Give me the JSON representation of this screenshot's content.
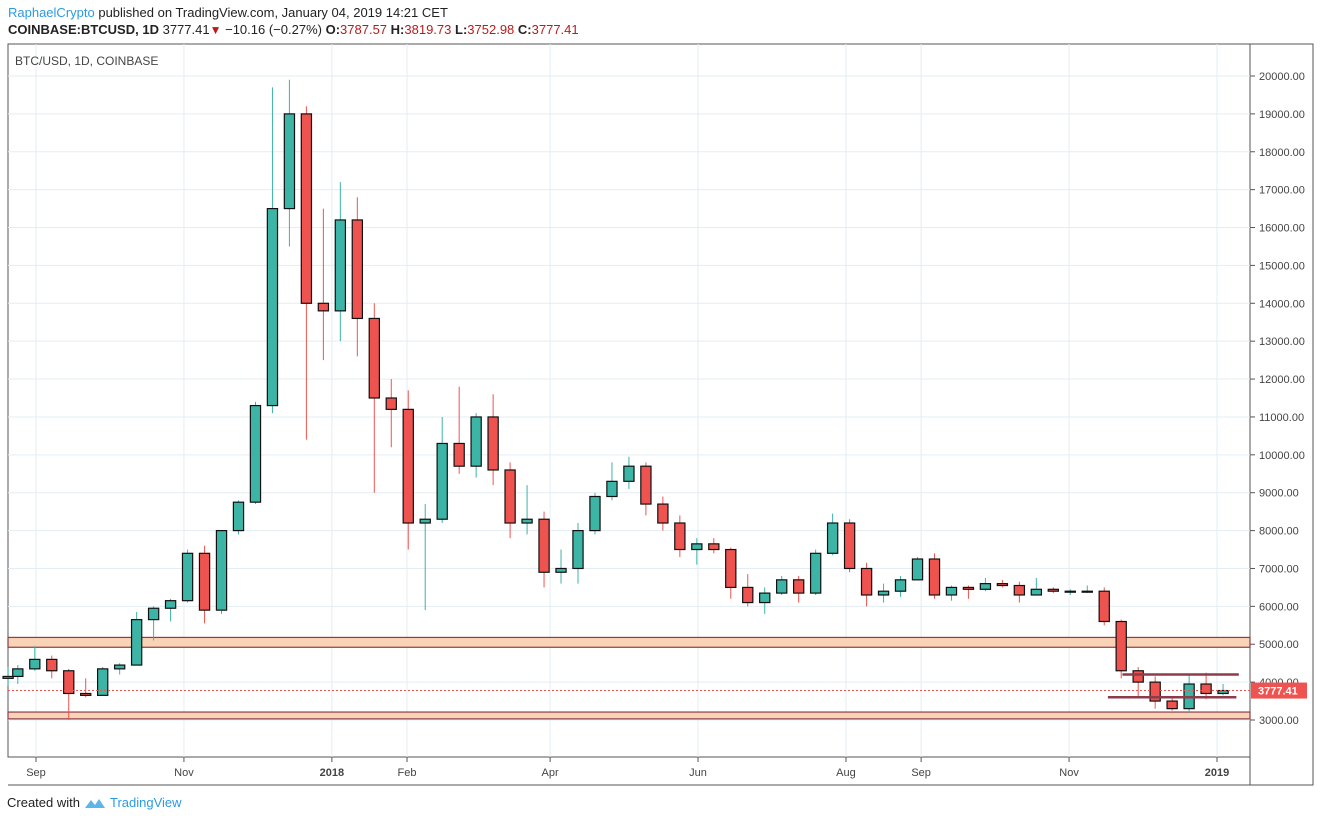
{
  "header": {
    "author": "RaphaelCrypto",
    "published": "published on TradingView.com, January 04, 2019 14:21 CET",
    "symbol": "COINBASE:BTCUSD, 1D",
    "last": "3777.41",
    "change": "−10.16 (−0.27%)",
    "o_label": "O:",
    "o": "3787.57",
    "h_label": "H:",
    "h": "3819.73",
    "l_label": "L:",
    "l": "3752.98",
    "c_label": "C:",
    "c": "3777.41"
  },
  "footer": {
    "created_with": "Created with",
    "brand": "TradingView",
    "logo_icon": "tradingview-logo-icon"
  },
  "colors": {
    "up": "#3cb4a6",
    "down": "#ef5350",
    "zone": "#f9d3b6",
    "zone_border": "#8e3b4a",
    "price_line": "#ef5350",
    "grid": "#e3edf3"
  },
  "chart_data": {
    "type": "candlestick",
    "title": "BTC/USD, 1D, COINBASE",
    "ylim": [
      2000,
      20800
    ],
    "yticks": [
      3000,
      4000,
      5000,
      6000,
      7000,
      8000,
      9000,
      10000,
      11000,
      12000,
      13000,
      14000,
      15000,
      16000,
      17000,
      18000,
      19000,
      20000
    ],
    "ytick_labels": [
      "3000.00",
      "4000.00",
      "5000.00",
      "6000.00",
      "7000.00",
      "8000.00",
      "9000.00",
      "10000.00",
      "11000.00",
      "12000.00",
      "13000.00",
      "14000.00",
      "15000.00",
      "16000.00",
      "17000.00",
      "18000.00",
      "19000.00",
      "20000.00"
    ],
    "xlim": [
      "2017-08-17",
      "2019-01-18"
    ],
    "xticks": [
      {
        "date": "2017-09-01",
        "label": "Sep"
      },
      {
        "date": "2017-11-01",
        "label": "Nov"
      },
      {
        "date": "2018-01-01",
        "label": "2018"
      },
      {
        "date": "2018-02-01",
        "label": "Feb"
      },
      {
        "date": "2018-04-01",
        "label": "Apr"
      },
      {
        "date": "2018-06-01",
        "label": "Jun"
      },
      {
        "date": "2018-08-01",
        "label": "Aug"
      },
      {
        "date": "2018-09-01",
        "label": "Sep"
      },
      {
        "date": "2018-11-01",
        "label": "Nov"
      },
      {
        "date": "2019-01-01",
        "label": "2019"
      }
    ],
    "grid": true,
    "last_price": 3777.41,
    "last_price_label": "3777.41",
    "zones": [
      {
        "from": 4920,
        "to": 5180
      },
      {
        "from": 3030,
        "to": 3210
      }
    ],
    "lines": [
      {
        "price": 4200,
        "from": "2018-11-23",
        "to": "2019-01-10"
      },
      {
        "price": 3600,
        "from": "2018-11-17",
        "to": "2019-01-09"
      }
    ],
    "columns": [
      "date",
      "open",
      "high",
      "low",
      "close"
    ],
    "candles": [
      [
        "2017-08-17",
        4100,
        4400,
        3900,
        4150
      ],
      [
        "2017-08-21",
        4150,
        4450,
        3950,
        4350
      ],
      [
        "2017-08-28",
        4350,
        4950,
        4300,
        4600
      ],
      [
        "2017-09-04",
        4600,
        4700,
        4100,
        4300
      ],
      [
        "2017-09-11",
        4300,
        4350,
        3000,
        3700
      ],
      [
        "2017-09-18",
        3700,
        4100,
        3600,
        3650
      ],
      [
        "2017-09-25",
        3650,
        4400,
        3650,
        4350
      ],
      [
        "2017-10-02",
        4350,
        4500,
        4200,
        4450
      ],
      [
        "2017-10-09",
        4450,
        5850,
        4450,
        5650
      ],
      [
        "2017-10-16",
        5650,
        6000,
        5100,
        5950
      ],
      [
        "2017-10-23",
        5950,
        6200,
        5600,
        6150
      ],
      [
        "2017-10-30",
        6150,
        7500,
        6100,
        7400
      ],
      [
        "2017-11-06",
        7400,
        7600,
        5550,
        5900
      ],
      [
        "2017-11-13",
        5900,
        8000,
        5800,
        8000
      ],
      [
        "2017-11-20",
        8000,
        8800,
        7900,
        8750
      ],
      [
        "2017-11-27",
        8750,
        11400,
        8700,
        11300
      ],
      [
        "2017-12-04",
        11300,
        19700,
        11100,
        16500
      ],
      [
        "2017-12-11",
        16500,
        19900,
        15500,
        19000
      ],
      [
        "2017-12-18",
        19000,
        19200,
        10400,
        14000
      ],
      [
        "2017-12-25",
        14000,
        16500,
        12500,
        13800
      ],
      [
        "2018-01-01",
        13800,
        17200,
        13000,
        16200
      ],
      [
        "2018-01-08",
        16200,
        16800,
        12600,
        13600
      ],
      [
        "2018-01-15",
        13600,
        14000,
        9000,
        11500
      ],
      [
        "2018-01-22",
        11500,
        12000,
        10200,
        11200
      ],
      [
        "2018-01-29",
        11200,
        11700,
        7500,
        8200
      ],
      [
        "2018-02-05",
        8200,
        8700,
        5900,
        8300
      ],
      [
        "2018-02-12",
        8300,
        11000,
        8200,
        10300
      ],
      [
        "2018-02-19",
        10300,
        11800,
        9500,
        9700
      ],
      [
        "2018-02-26",
        9700,
        11100,
        9400,
        11000
      ],
      [
        "2018-03-05",
        11000,
        11600,
        9200,
        9600
      ],
      [
        "2018-03-12",
        9600,
        9800,
        7800,
        8200
      ],
      [
        "2018-03-19",
        8200,
        9200,
        7900,
        8300
      ],
      [
        "2018-03-26",
        8300,
        8500,
        6500,
        6900
      ],
      [
        "2018-04-02",
        6900,
        7500,
        6600,
        7000
      ],
      [
        "2018-04-09",
        7000,
        8200,
        6600,
        8000
      ],
      [
        "2018-04-16",
        8000,
        9000,
        7900,
        8900
      ],
      [
        "2018-04-23",
        8900,
        9800,
        8800,
        9300
      ],
      [
        "2018-04-30",
        9300,
        9950,
        9100,
        9700
      ],
      [
        "2018-05-07",
        9700,
        9800,
        8400,
        8700
      ],
      [
        "2018-05-14",
        8700,
        8900,
        8000,
        8200
      ],
      [
        "2018-05-21",
        8200,
        8400,
        7300,
        7500
      ],
      [
        "2018-05-28",
        7500,
        7800,
        7100,
        7650
      ],
      [
        "2018-06-04",
        7650,
        7800,
        7400,
        7500
      ],
      [
        "2018-06-11",
        7500,
        7550,
        6200,
        6500
      ],
      [
        "2018-06-18",
        6500,
        6850,
        6000,
        6100
      ],
      [
        "2018-06-25",
        6100,
        6500,
        5800,
        6350
      ],
      [
        "2018-07-02",
        6350,
        6800,
        6300,
        6700
      ],
      [
        "2018-07-09",
        6700,
        6800,
        6100,
        6350
      ],
      [
        "2018-07-16",
        6350,
        7500,
        6300,
        7400
      ],
      [
        "2018-07-23",
        7400,
        8450,
        7350,
        8200
      ],
      [
        "2018-07-30",
        8200,
        8300,
        6900,
        7000
      ],
      [
        "2018-08-06",
        7000,
        7150,
        6000,
        6300
      ],
      [
        "2018-08-13",
        6300,
        6600,
        6100,
        6400
      ],
      [
        "2018-08-20",
        6400,
        6800,
        6250,
        6700
      ],
      [
        "2018-08-27",
        6700,
        7300,
        6700,
        7250
      ],
      [
        "2018-09-03",
        7250,
        7400,
        6200,
        6300
      ],
      [
        "2018-09-10",
        6300,
        6550,
        6150,
        6500
      ],
      [
        "2018-09-17",
        6500,
        6550,
        6200,
        6450
      ],
      [
        "2018-09-24",
        6450,
        6750,
        6400,
        6600
      ],
      [
        "2018-10-01",
        6600,
        6700,
        6500,
        6550
      ],
      [
        "2018-10-08",
        6550,
        6650,
        6100,
        6300
      ],
      [
        "2018-10-15",
        6300,
        6750,
        6300,
        6450
      ],
      [
        "2018-10-22",
        6450,
        6500,
        6350,
        6400
      ],
      [
        "2018-10-29",
        6400,
        6450,
        6300,
        6400
      ],
      [
        "2018-11-05",
        6400,
        6550,
        6350,
        6400
      ],
      [
        "2018-11-12",
        6400,
        6500,
        5500,
        5600
      ],
      [
        "2018-11-19",
        5600,
        5650,
        4100,
        4300
      ],
      [
        "2018-11-26",
        4300,
        4400,
        3600,
        4000
      ],
      [
        "2018-12-03",
        4000,
        4150,
        3300,
        3500
      ],
      [
        "2018-12-10",
        3500,
        3600,
        3250,
        3300
      ],
      [
        "2018-12-17",
        3300,
        4200,
        3180,
        3950
      ],
      [
        "2018-12-24",
        3950,
        4250,
        3550,
        3700
      ],
      [
        "2018-12-31",
        3700,
        3950,
        3650,
        3777.41
      ]
    ]
  }
}
